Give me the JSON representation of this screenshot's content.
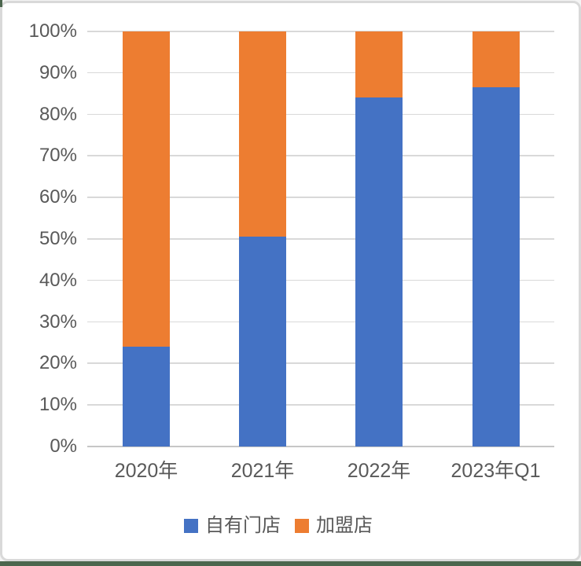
{
  "chart_data": {
    "type": "bar",
    "variant": "stacked-100-percent-column",
    "title": "",
    "xlabel": "",
    "ylabel": "",
    "categories": [
      "2020年",
      "2021年",
      "2022年",
      "2023年Q1"
    ],
    "series": [
      {
        "name": "自有门店",
        "color": "#4472C4",
        "values": [
          24,
          50.5,
          84,
          86.5
        ]
      },
      {
        "name": "加盟店",
        "color": "#ED7D31",
        "values": [
          76,
          49.5,
          16,
          13.5
        ]
      }
    ],
    "ylim": [
      0,
      100
    ],
    "ytick_step": 10,
    "ytick_labels": [
      "0%",
      "10%",
      "20%",
      "30%",
      "40%",
      "50%",
      "60%",
      "70%",
      "80%",
      "90%",
      "100%"
    ],
    "grid": true,
    "legend_position": "bottom"
  },
  "colors": {
    "series_blue": "#4472C4",
    "series_orange": "#ED7D31",
    "tick_text": "#595959",
    "gridline": "#d9d9d9",
    "axis_line": "#c6c6c6",
    "card_border": "#d9d9d9",
    "bottom_accent": "#4c664e",
    "corner_accent": "#4c664e"
  }
}
